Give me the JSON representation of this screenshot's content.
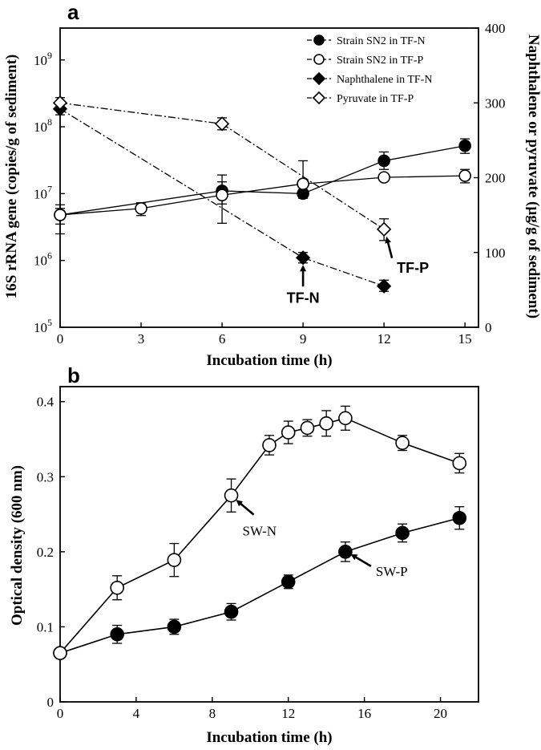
{
  "chart_data": [
    {
      "panel": "a",
      "type": "line",
      "xlabel": "Incubation time (h)",
      "ylabel": "16S rRNA gene (copies/g of sediment)",
      "y2label": "Naphthalene or pyruvate (µg/g of sediment)",
      "xlim": [
        0,
        15.5
      ],
      "ylim_log": [
        100000,
        3000000000
      ],
      "y_scale": "log",
      "y2lim": [
        0,
        400
      ],
      "x_ticks": [
        0,
        3,
        6,
        9,
        12,
        15
      ],
      "y_ticks": [
        {
          "value": 100000,
          "base": "10",
          "exp": "5"
        },
        {
          "value": 1000000,
          "base": "10",
          "exp": "6"
        },
        {
          "value": 10000000,
          "base": "10",
          "exp": "7"
        },
        {
          "value": 100000000,
          "base": "10",
          "exp": "8"
        },
        {
          "value": 1000000000,
          "base": "10",
          "exp": "9"
        }
      ],
      "y2_ticks": [
        0,
        100,
        200,
        300,
        400
      ],
      "legend_position": "top-right",
      "series": [
        {
          "name": "Strain SN2 in TF-N",
          "axis": "left",
          "marker": "circle",
          "filled": true,
          "line": "solid",
          "x": [
            0,
            6,
            9,
            12,
            15
          ],
          "y": [
            4800000,
            11000000,
            10000000,
            31000000,
            52000000
          ],
          "err_low": [
            2500000,
            7000000,
            8500000,
            23000000,
            40000000
          ],
          "err_high": [
            6800000,
            15000000,
            11500000,
            42000000,
            66000000
          ]
        },
        {
          "name": "Strain SN2 in TF-P",
          "axis": "left",
          "marker": "circle",
          "filled": false,
          "line": "solid",
          "x": [
            0,
            3,
            6,
            9,
            12,
            15
          ],
          "y": [
            4800000,
            6000000,
            9500000,
            14000000,
            17500000,
            18500000
          ],
          "err_low": [
            3500000,
            4700000,
            3600000,
            9000000,
            16000000,
            14500000
          ],
          "err_high": [
            6000000,
            7300000,
            19000000,
            31000000,
            19000000,
            23000000
          ]
        },
        {
          "name": "Naphthalene in TF-N",
          "axis": "right",
          "marker": "diamond",
          "filled": true,
          "line": "dashdot",
          "x": [
            0,
            9,
            12
          ],
          "y": [
            292,
            93,
            55
          ],
          "err_low": [
            284,
            86,
            48
          ],
          "err_high": [
            300,
            100,
            63
          ]
        },
        {
          "name": "Pyruvate in TF-P",
          "axis": "right",
          "marker": "diamond",
          "filled": false,
          "line": "dashdot",
          "x": [
            0,
            6,
            12
          ],
          "y": [
            300,
            272,
            131
          ],
          "err_low": [
            292,
            264,
            116
          ],
          "err_high": [
            307,
            280,
            145
          ]
        }
      ],
      "annotations": [
        {
          "text": "TF-N",
          "target_series": 2,
          "target_index": 1
        },
        {
          "text": "TF-P",
          "target_series": 3,
          "target_index": 2
        }
      ]
    },
    {
      "panel": "b",
      "type": "line",
      "xlabel": "Incubation time (h)",
      "ylabel": "Optical density (600 nm)",
      "xlim": [
        0,
        22
      ],
      "ylim": [
        0,
        0.42
      ],
      "x_ticks": [
        0,
        4,
        8,
        12,
        16,
        20
      ],
      "y_ticks": [
        0,
        0.1,
        0.2,
        0.3,
        0.4
      ],
      "y_tick_labels": [
        "0",
        "0.1",
        "0.2",
        "0.3",
        "0.4"
      ],
      "series": [
        {
          "label": "SW-N",
          "marker": "circle",
          "filled": false,
          "x": [
            0,
            3,
            6,
            9,
            11,
            12,
            13,
            14,
            15,
            18,
            21
          ],
          "y": [
            0.065,
            0.152,
            0.189,
            0.275,
            0.342,
            0.359,
            0.365,
            0.371,
            0.378,
            0.345,
            0.318
          ],
          "err": [
            0.006,
            0.016,
            0.022,
            0.022,
            0.013,
            0.015,
            0.011,
            0.017,
            0.016,
            0.01,
            0.013
          ]
        },
        {
          "label": "SW-P",
          "marker": "circle",
          "filled": true,
          "x": [
            0,
            3,
            6,
            9,
            12,
            15,
            18,
            21
          ],
          "y": [
            0.065,
            0.09,
            0.1,
            0.12,
            0.16,
            0.2,
            0.225,
            0.245
          ],
          "err": [
            0.006,
            0.012,
            0.01,
            0.011,
            0.009,
            0.013,
            0.012,
            0.015
          ]
        }
      ],
      "annotations": [
        {
          "text": "SW-N",
          "target_series": 0,
          "target_index": 3
        },
        {
          "text": "SW-P",
          "target_series": 1,
          "target_index": 5
        }
      ]
    }
  ]
}
